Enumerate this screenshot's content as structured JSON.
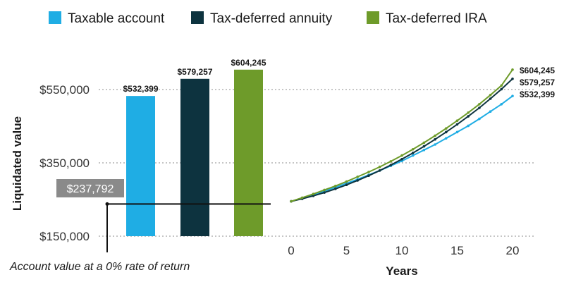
{
  "colors": {
    "taxable": "#1fade4",
    "annuity": "#0d333f",
    "ira": "#6e9b2a",
    "grid": "#8c8c8c",
    "baseline_box": "#8a8a8a"
  },
  "legend": [
    {
      "key": "taxable",
      "label": "Taxable account"
    },
    {
      "key": "annuity",
      "label": "Tax-deferred annuity"
    },
    {
      "key": "ira",
      "label": "Tax-deferred IRA"
    }
  ],
  "chart_data": [
    {
      "type": "bar",
      "title": "",
      "ylabel": "Liquidated value",
      "ylim": [
        150000,
        620000
      ],
      "yticks": [
        150000,
        350000,
        550000
      ],
      "ytick_labels": [
        "$150,000",
        "$350,000",
        "$550,000"
      ],
      "grid": true,
      "categories": [
        "Taxable account",
        "Tax-deferred annuity",
        "Tax-deferred IRA"
      ],
      "values": [
        532399,
        579257,
        604245
      ],
      "value_labels": [
        "$532,399",
        "$579,257",
        "$604,245"
      ],
      "baseline": {
        "value": 237792,
        "label": "$237,792",
        "note": "Account value at a 0% rate of return"
      }
    },
    {
      "type": "line",
      "title": "",
      "xlabel": "Years",
      "ylabel": "Liquidated value",
      "xlim": [
        0,
        20
      ],
      "xticks": [
        0,
        5,
        10,
        15,
        20
      ],
      "ylim": [
        150000,
        620000
      ],
      "x": [
        0,
        1,
        2,
        3,
        4,
        5,
        6,
        7,
        8,
        9,
        10,
        11,
        12,
        13,
        14,
        15,
        16,
        17,
        18,
        19,
        20
      ],
      "series": [
        {
          "name": "Taxable account",
          "key": "taxable",
          "end_label": "$532,399",
          "values": [
            245000,
            254000,
            263000,
            273000,
            283000,
            294000,
            305000,
            317000,
            329000,
            342000,
            355000,
            370000,
            385000,
            400000,
            417000,
            434000,
            451000,
            470000,
            490000,
            510000,
            532399
          ]
        },
        {
          "name": "Tax-deferred annuity",
          "key": "annuity",
          "end_label": "$579,257",
          "values": [
            245000,
            252000,
            260000,
            269000,
            279000,
            290000,
            302000,
            315000,
            329000,
            344000,
            360000,
            377000,
            395000,
            414000,
            434000,
            455000,
            477000,
            500000,
            525000,
            551000,
            579257
          ]
        },
        {
          "name": "Tax-deferred IRA",
          "key": "ira",
          "end_label": "$604,245",
          "values": [
            245000,
            255000,
            265000,
            276000,
            287000,
            299000,
            312000,
            325000,
            339000,
            354000,
            370000,
            387000,
            405000,
            424000,
            444000,
            465000,
            487000,
            510000,
            535000,
            561000,
            604245
          ]
        }
      ]
    }
  ]
}
